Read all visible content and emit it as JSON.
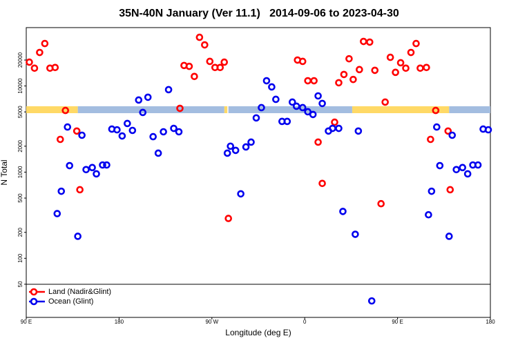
{
  "chart_data": {
    "type": "scatter",
    "title": "35N-40N January (Ver 11.1)   2014-09-06 to 2023-04-30",
    "xlabel": "Longitude (deg E)",
    "ylabel": "N Total",
    "xlim": [
      90,
      540
    ],
    "xticks": [
      {
        "value": 90,
        "label": "90 E"
      },
      180,
      {
        "value": 270,
        "label": "90 W"
      },
      {
        "value": 360,
        "label": "0"
      },
      {
        "value": 450,
        "label": "90 E"
      },
      {
        "value": 540,
        "label": "180"
      }
    ],
    "ylim": [
      20.6,
      47600
    ],
    "yscale": "log",
    "yticks": [
      50,
      100,
      200,
      500,
      1000,
      2000,
      5000,
      10000,
      20000
    ],
    "series": [
      {
        "color": "#ffd966",
        "x": [
          90,
          140,
          200,
          282,
          285,
          300,
          406,
          500
        ],
        "values": [
          5300,
          5300,
          null,
          5300,
          5300,
          null,
          5300,
          5300
        ]
      },
      {
        "color": "#a3bde0",
        "x": [
          140,
          282,
          284,
          286,
          406,
          450,
          500,
          540
        ],
        "values": [
          5300,
          5300,
          null,
          5300,
          5300,
          null,
          5300,
          5300
        ]
      },
      {
        "name": "Land (Nadir&Glint)",
        "color": "#ff0000",
        "x": [
          93,
          98,
          103,
          108,
          113,
          118,
          123,
          128,
          139,
          142,
          239,
          243,
          248,
          253,
          258,
          263,
          268,
          273,
          278,
          282,
          286,
          353,
          358,
          363,
          369,
          373,
          377,
          389,
          393,
          398,
          403,
          407,
          413,
          417,
          423,
          428,
          434,
          438,
          443,
          448,
          453,
          458,
          463,
          468,
          472,
          478,
          482,
          487,
          499,
          501
        ],
        "values": [
          18900,
          16100,
          24500,
          31100,
          16100,
          16400,
          2400,
          5200,
          3000,
          625,
          5500,
          17300,
          16900,
          12900,
          36700,
          30000,
          19300,
          16400,
          16400,
          18900,
          290,
          20000,
          19300,
          11500,
          11500,
          2230,
          740,
          3800,
          10900,
          13600,
          20700,
          11900,
          15500,
          32900,
          32300,
          15200,
          430,
          6500,
          21500,
          14400,
          18600,
          16100,
          24500,
          31100,
          16100,
          16400,
          2400,
          5200,
          3000,
          625
        ]
      },
      {
        "name": "Ocean (Glint)",
        "color": "#0000ee",
        "x": [
          120,
          124,
          130,
          132,
          140,
          144,
          148,
          154,
          158,
          164,
          168,
          173,
          178,
          183,
          188,
          193,
          199,
          203,
          208,
          213,
          218,
          223,
          228,
          233,
          238,
          285,
          288,
          293,
          298,
          303,
          308,
          313,
          318,
          323,
          328,
          332,
          338,
          343,
          348,
          352,
          358,
          363,
          368,
          373,
          377,
          383,
          387,
          393,
          397,
          409,
          412,
          425,
          480,
          483,
          488,
          491,
          500,
          503,
          507,
          513,
          518,
          523,
          528,
          533,
          538
        ],
        "values": [
          330,
          600,
          3340,
          1190,
          180,
          2680,
          1070,
          1130,
          955,
          1210,
          1210,
          3160,
          3100,
          2630,
          3670,
          3050,
          6870,
          4930,
          7400,
          2580,
          1660,
          2940,
          9060,
          3220,
          2940,
          1660,
          2000,
          1790,
          560,
          1960,
          2230,
          4260,
          5610,
          11500,
          9750,
          7000,
          3880,
          3880,
          6500,
          5820,
          5610,
          5020,
          4670,
          7670,
          6270,
          3000,
          3220,
          3220,
          350,
          190,
          3000,
          32,
          320,
          600,
          3340,
          1190,
          180,
          2680,
          1070,
          1130,
          955,
          1210,
          1210,
          3160,
          3100
        ]
      }
    ]
  }
}
